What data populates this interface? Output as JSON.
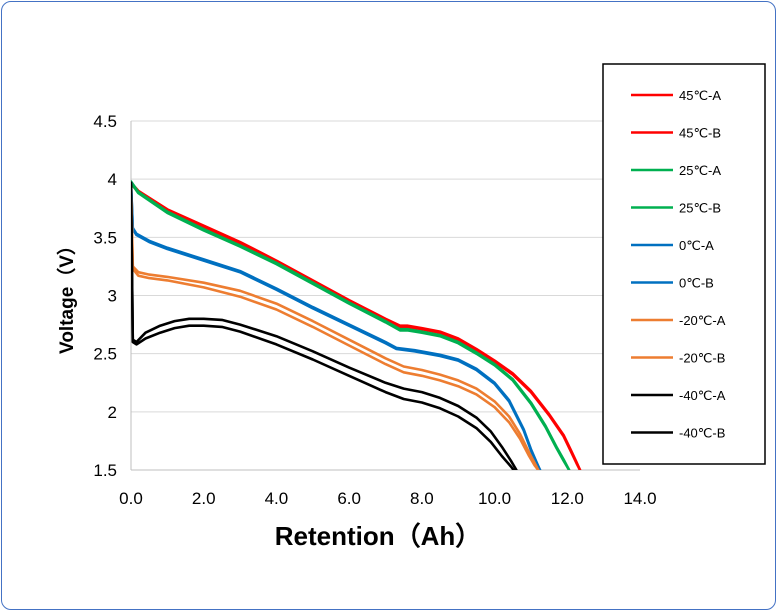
{
  "chart_data": {
    "type": "line",
    "title": "",
    "xlabel": "Retention（Ah）",
    "ylabel": "Voltage（V）",
    "xlim": [
      0,
      14
    ],
    "ylim": [
      1.5,
      4.5
    ],
    "x_ticks": [
      "0.0",
      "2.0",
      "4.0",
      "6.0",
      "8.0",
      "10.0",
      "12.0",
      "14.0"
    ],
    "y_ticks": [
      "1.5",
      "2",
      "2.5",
      "3",
      "3.5",
      "4",
      "4.5"
    ],
    "grid": "horizontal",
    "legend_position": "right",
    "series": [
      {
        "name": "45℃-A",
        "color": "#ff0000",
        "x": [
          0,
          0.2,
          1,
          2,
          3,
          4,
          5,
          6,
          7,
          7.4,
          7.6,
          8,
          8.5,
          9,
          9.5,
          10,
          10.5,
          11,
          11.5,
          11.9,
          12.1,
          12.25,
          12.35
        ],
        "y": [
          3.97,
          3.9,
          3.74,
          3.6,
          3.46,
          3.3,
          3.13,
          2.96,
          2.8,
          2.74,
          2.74,
          2.72,
          2.69,
          2.63,
          2.54,
          2.44,
          2.33,
          2.18,
          1.98,
          1.8,
          1.67,
          1.57,
          1.5
        ]
      },
      {
        "name": "45℃-B",
        "color": "#ff0000",
        "x": [
          0,
          0.2,
          1,
          2,
          3,
          4,
          5,
          6,
          7,
          7.4,
          7.6,
          8,
          8.5,
          9,
          9.5,
          10,
          10.5,
          11,
          11.5,
          11.9,
          12.1,
          12.25,
          12.35
        ],
        "y": [
          3.96,
          3.89,
          3.73,
          3.59,
          3.45,
          3.29,
          3.12,
          2.95,
          2.79,
          2.73,
          2.73,
          2.71,
          2.68,
          2.62,
          2.53,
          2.43,
          2.32,
          2.17,
          1.97,
          1.79,
          1.66,
          1.56,
          1.5
        ]
      },
      {
        "name": "25℃-A",
        "color": "#00b050",
        "x": [
          0,
          0.2,
          1,
          2,
          3,
          4,
          5,
          6,
          7,
          7.4,
          7.6,
          8,
          8.5,
          9,
          9.5,
          10,
          10.5,
          11,
          11.4,
          11.7,
          11.9,
          12.05
        ],
        "y": [
          3.98,
          3.89,
          3.72,
          3.57,
          3.43,
          3.28,
          3.11,
          2.94,
          2.78,
          2.71,
          2.71,
          2.69,
          2.66,
          2.6,
          2.51,
          2.41,
          2.28,
          2.08,
          1.88,
          1.7,
          1.59,
          1.5
        ]
      },
      {
        "name": "25℃-B",
        "color": "#00b050",
        "x": [
          0,
          0.2,
          1,
          2,
          3,
          4,
          5,
          6,
          7,
          7.4,
          7.6,
          8,
          8.5,
          9,
          9.5,
          10,
          10.5,
          11,
          11.4,
          11.7,
          11.9,
          12.05
        ],
        "y": [
          3.97,
          3.88,
          3.71,
          3.56,
          3.42,
          3.27,
          3.1,
          2.93,
          2.77,
          2.7,
          2.7,
          2.68,
          2.65,
          2.59,
          2.5,
          2.4,
          2.27,
          2.07,
          1.87,
          1.69,
          1.58,
          1.5
        ]
      },
      {
        "name": "0℃-A",
        "color": "#0070c0",
        "x": [
          0,
          0.05,
          0.15,
          0.5,
          1,
          2,
          3,
          4,
          5,
          6,
          7,
          7.3,
          7.8,
          8.5,
          9,
          9.5,
          10,
          10.4,
          10.8,
          11.0,
          11.15,
          11.25
        ],
        "y": [
          3.97,
          3.58,
          3.53,
          3.47,
          3.41,
          3.31,
          3.21,
          3.06,
          2.9,
          2.75,
          2.6,
          2.55,
          2.53,
          2.49,
          2.45,
          2.37,
          2.25,
          2.1,
          1.85,
          1.68,
          1.57,
          1.5
        ]
      },
      {
        "name": "0℃-B",
        "color": "#0070c0",
        "x": [
          0,
          0.05,
          0.15,
          0.5,
          1,
          2,
          3,
          4,
          5,
          6,
          7,
          7.3,
          7.8,
          8.5,
          9,
          9.5,
          10,
          10.4,
          10.8,
          11.0,
          11.15,
          11.25
        ],
        "y": [
          3.96,
          3.57,
          3.52,
          3.46,
          3.4,
          3.3,
          3.2,
          3.05,
          2.89,
          2.74,
          2.59,
          2.54,
          2.52,
          2.48,
          2.44,
          2.36,
          2.24,
          2.09,
          1.84,
          1.67,
          1.56,
          1.5
        ]
      },
      {
        "name": "-20℃-A",
        "color": "#ed7d31",
        "x": [
          0,
          0.05,
          0.2,
          0.5,
          1,
          2,
          3,
          4,
          5,
          6,
          7,
          7.5,
          8,
          8.5,
          9,
          9.5,
          10,
          10.4,
          10.7,
          10.95,
          11.1,
          11.2
        ],
        "y": [
          3.95,
          3.25,
          3.2,
          3.18,
          3.16,
          3.11,
          3.04,
          2.93,
          2.78,
          2.62,
          2.46,
          2.39,
          2.36,
          2.32,
          2.27,
          2.2,
          2.09,
          1.96,
          1.81,
          1.65,
          1.56,
          1.5
        ]
      },
      {
        "name": "-20℃-B",
        "color": "#ed7d31",
        "x": [
          0,
          0.05,
          0.2,
          0.5,
          1,
          2,
          3,
          4,
          5,
          6,
          7,
          7.5,
          8,
          8.5,
          9,
          9.5,
          10,
          10.4,
          10.7,
          10.95,
          11.1,
          11.2
        ],
        "y": [
          3.93,
          3.23,
          3.17,
          3.15,
          3.13,
          3.07,
          2.99,
          2.88,
          2.73,
          2.57,
          2.41,
          2.34,
          2.31,
          2.27,
          2.22,
          2.15,
          2.04,
          1.91,
          1.77,
          1.62,
          1.54,
          1.5
        ]
      },
      {
        "name": "-40℃-A",
        "color": "#000000",
        "x": [
          0,
          0.05,
          0.15,
          0.4,
          0.8,
          1.2,
          1.6,
          2.0,
          2.5,
          3,
          4,
          5,
          6,
          7,
          7.5,
          8,
          8.5,
          9,
          9.5,
          9.9,
          10.2,
          10.45,
          10.6
        ],
        "y": [
          3.97,
          2.62,
          2.6,
          2.68,
          2.74,
          2.78,
          2.8,
          2.8,
          2.79,
          2.75,
          2.65,
          2.52,
          2.38,
          2.25,
          2.2,
          2.17,
          2.12,
          2.05,
          1.95,
          1.83,
          1.7,
          1.58,
          1.5
        ]
      },
      {
        "name": "-40℃-B",
        "color": "#000000",
        "x": [
          0,
          0.05,
          0.15,
          0.4,
          0.8,
          1.2,
          1.6,
          2.0,
          2.5,
          3,
          4,
          5,
          6,
          7,
          7.5,
          8,
          8.5,
          9,
          9.5,
          9.9,
          10.2,
          10.45,
          10.6
        ],
        "y": [
          3.95,
          2.6,
          2.58,
          2.63,
          2.68,
          2.72,
          2.74,
          2.74,
          2.73,
          2.69,
          2.58,
          2.45,
          2.31,
          2.17,
          2.11,
          2.08,
          2.03,
          1.96,
          1.86,
          1.74,
          1.62,
          1.53,
          1.47
        ]
      }
    ]
  }
}
